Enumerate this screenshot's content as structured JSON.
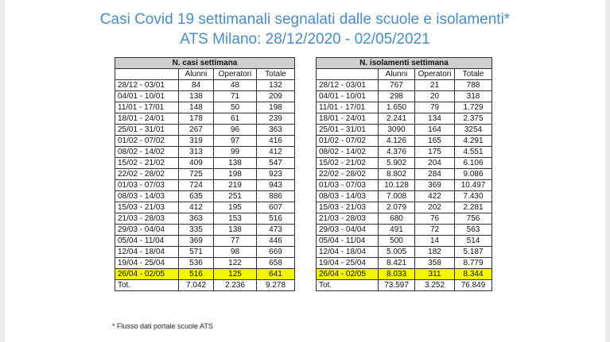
{
  "title_line1": "Casi Covid 19 settimanali segnalati dalle scuole e isolamenti*",
  "title_line2": "ATS Milano: 28/12/2020 - 02/05/2021",
  "left": {
    "header": "N. casi settimana",
    "col_alunni": "Alunni",
    "col_operatori": "Operatori",
    "col_totale": "Totale",
    "rows": [
      [
        "28/12 - 03/01",
        "84",
        "48",
        "132"
      ],
      [
        "04/01 - 10/01",
        "138",
        "71",
        "209"
      ],
      [
        "11/01 - 17/01",
        "148",
        "50",
        "198"
      ],
      [
        "18/01 - 24/01",
        "178",
        "61",
        "239"
      ],
      [
        "25/01 - 31/01",
        "267",
        "96",
        "363"
      ],
      [
        "01/02 - 07/02",
        "319",
        "97",
        "416"
      ],
      [
        "08/02 - 14/02",
        "313",
        "99",
        "412"
      ],
      [
        "15/02 - 21/02",
        "409",
        "138",
        "547"
      ],
      [
        "22/02 - 28/02",
        "725",
        "198",
        "923"
      ],
      [
        "01/03 - 07/03",
        "724",
        "219",
        "943"
      ],
      [
        "08/03 - 14/03",
        "635",
        "251",
        "886"
      ],
      [
        "15/03 - 21/03",
        "412",
        "195",
        "607"
      ],
      [
        "21/03 - 28/03",
        "363",
        "153",
        "516"
      ],
      [
        "29/03 - 04/04",
        "335",
        "138",
        "473"
      ],
      [
        "05/04 - 11/04",
        "369",
        "77",
        "446"
      ],
      [
        "12/04 - 18/04",
        "571",
        "98",
        "669"
      ],
      [
        "19/04 - 25/04",
        "536",
        "122",
        "658"
      ],
      [
        "26/04 - 02/05",
        "516",
        "125",
        "641"
      ],
      [
        "Tot.",
        "7.042",
        "2.236",
        "9.278"
      ]
    ]
  },
  "right": {
    "header": "N. isolamenti settimana",
    "col_alunni": "Alunni",
    "col_operatori": "Operatori",
    "col_totale": "Totale",
    "rows": [
      [
        "28/12 - 03/01",
        "767",
        "21",
        "788"
      ],
      [
        "04/01 - 10/01",
        "298",
        "20",
        "318"
      ],
      [
        "11/01 - 17/01",
        "1.650",
        "79",
        "1.729"
      ],
      [
        "18/01 - 24/01",
        "2.241",
        "134",
        "2.375"
      ],
      [
        "25/01 - 31/01",
        "3090",
        "164",
        "3254"
      ],
      [
        "01/02 - 07/02",
        "4.126",
        "165",
        "4.291"
      ],
      [
        "08/02 - 14/02",
        "4.376",
        "175",
        "4.551"
      ],
      [
        "15/02 - 21/02",
        "5.902",
        "204",
        "6.106"
      ],
      [
        "22/02 - 28/02",
        "8.802",
        "284",
        "9.086"
      ],
      [
        "01/03 - 07/03",
        "10.128",
        "369",
        "10.497"
      ],
      [
        "08/03 - 14/03",
        "7.008",
        "422",
        "7.430"
      ],
      [
        "15/03 - 21/03",
        "2.079",
        "202",
        "2.281"
      ],
      [
        "21/03 - 28/03",
        "680",
        "76",
        "756"
      ],
      [
        "29/03 - 04/04",
        "491",
        "72",
        "563"
      ],
      [
        "05/04 - 11/04",
        "500",
        "14",
        "514"
      ],
      [
        "12/04 - 18/04",
        "5.005",
        "182",
        "5.187"
      ],
      [
        "19/04 - 25/04",
        "8.421",
        "358",
        "8.779"
      ],
      [
        "26/04 - 02/05",
        "8.033",
        "311",
        "8.344"
      ],
      [
        "Tot.",
        "73.597",
        "3.252",
        "76.849"
      ]
    ]
  },
  "highlight_row_index": 17,
  "total_row_index": 18,
  "highlight_color": "#f4f500",
  "header_color": "#cfcfcf",
  "title_color": "#4a8cc6",
  "footnote": "* Flusso dati portale scuole ATS"
}
